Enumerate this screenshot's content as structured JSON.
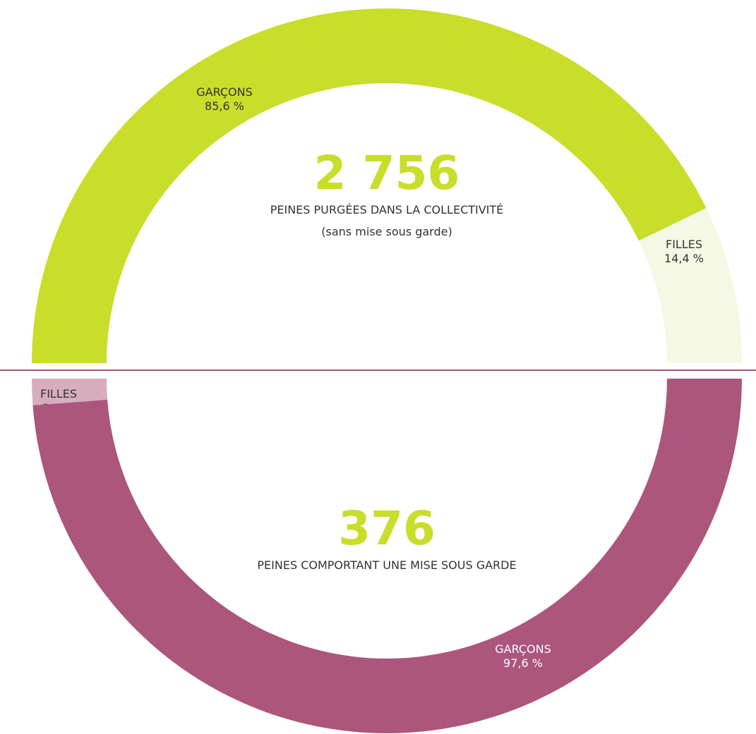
{
  "chart_data": [
    {
      "type": "pie",
      "variant": "semi-donut",
      "total": "2 756",
      "caption": "PEINES PURGÉES DANS LA COLLECTIVITÉ",
      "subcaption": "(sans mise sous garde)",
      "slices": [
        {
          "label": "GARÇONS",
          "value": 85.6,
          "value_label": "85,6 %",
          "color": "#c9dd2b"
        },
        {
          "label": "FILLES",
          "value": 14.4,
          "value_label": "14,4 %",
          "color": "#f4f8e4"
        }
      ]
    },
    {
      "type": "pie",
      "variant": "semi-donut",
      "total": "376",
      "caption": "PEINES COMPORTANT UNE MISE SOUS GARDE",
      "slices": [
        {
          "label": "FILLES",
          "value": 2.4,
          "value_label": "2,4 %",
          "color": "#d7adbd"
        },
        {
          "label": "GARÇONS",
          "value": 97.6,
          "value_label": "97,6 %",
          "color": "#ac567b"
        }
      ]
    }
  ],
  "colors": {
    "number": "#c9dd2b",
    "divider": "#ac567b",
    "text_dark": "#333333",
    "text_light": "#ffffff"
  }
}
